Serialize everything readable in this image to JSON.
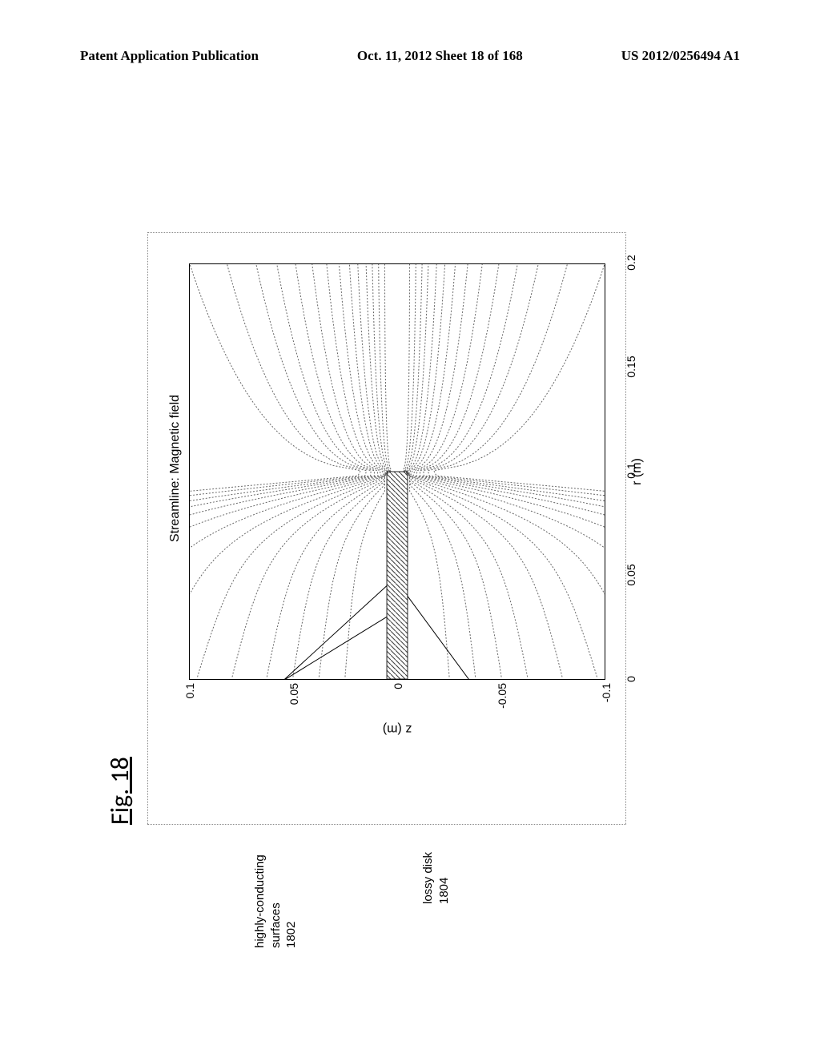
{
  "header": {
    "left": "Patent Application Publication",
    "center": "Oct. 11, 2012  Sheet 18 of 168",
    "right": "US 2012/0256494 A1"
  },
  "figure": {
    "label": "Fig. 18",
    "title": "Streamline: Magnetic field",
    "x_axis": {
      "label": "r (m)",
      "min": 0,
      "max": 0.2,
      "ticks": [
        0,
        0.05,
        0.1,
        0.15,
        0.2
      ]
    },
    "y_axis": {
      "label": "z (m)",
      "min": -0.1,
      "max": 0.1,
      "ticks": [
        -0.1,
        -0.05,
        0,
        0.05,
        0.1
      ]
    },
    "disk": {
      "r_min": 0,
      "r_max": 0.1,
      "z_min": -0.005,
      "z_max": 0.005,
      "fill": "#888888"
    },
    "annotations": [
      {
        "label_lines": [
          "highly-conducting",
          "surfaces",
          "1802"
        ],
        "target_r": 0.03,
        "target_z": 0.005
      },
      {
        "label_lines": [
          "lossy disk",
          "1804"
        ],
        "target_r": 0.04,
        "target_z": -0.005
      }
    ],
    "streamline_offsets": [
      0.1,
      0.082,
      0.068,
      0.058,
      0.049,
      0.041,
      0.034,
      0.028,
      0.023,
      0.019,
      0.015,
      0.012,
      0.009
    ],
    "plot_colors": {
      "streamline": "#666666",
      "border": "#000000",
      "disk_hatch": "#333333"
    }
  }
}
